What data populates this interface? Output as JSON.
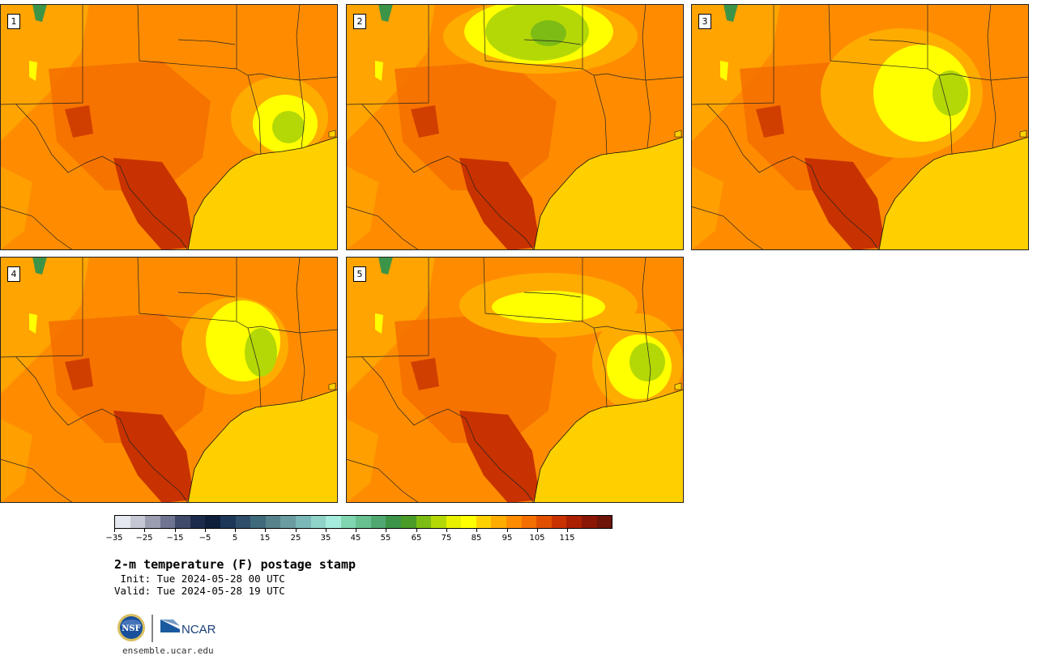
{
  "panels": [
    {
      "label": "1",
      "variant": "east-cool"
    },
    {
      "label": "2",
      "variant": "north-cool"
    },
    {
      "label": "3",
      "variant": "center-cool"
    },
    {
      "label": "4",
      "variant": "oklahoma-cool"
    },
    {
      "label": "5",
      "variant": "arkansas-cool"
    }
  ],
  "colorbar": {
    "colors": [
      "#e5e8ee",
      "#c5c8d4",
      "#9a9eb0",
      "#6f7590",
      "#3f4a6a",
      "#1c2a4c",
      "#0e1f3c",
      "#1d3758",
      "#2e4e6a",
      "#3f6a7c",
      "#56828c",
      "#6a9ca2",
      "#7ab8b8",
      "#8fd2c8",
      "#a6ecdc",
      "#7fd6b0",
      "#66c090",
      "#4fa870",
      "#3c9448",
      "#4a9c28",
      "#7cbc14",
      "#b4d806",
      "#e8f000",
      "#ffff00",
      "#ffd000",
      "#ffac00",
      "#ff8c00",
      "#f46e00",
      "#e05000",
      "#c83200",
      "#aa2000",
      "#8a1606",
      "#6e1408"
    ],
    "tick_labels": [
      "−35",
      "−25",
      "−15",
      "−5",
      "5",
      "15",
      "25",
      "35",
      "45",
      "55",
      "65",
      "75",
      "85",
      "95",
      "105",
      "115"
    ]
  },
  "legend_colors": {
    "gulf": "#ffd000",
    "hot": "#c83200",
    "warm": "#f46e00",
    "base": "#ff8c00",
    "mild": "#ffac00",
    "cool": "#ffff00",
    "cooler": "#b4d806",
    "coolest": "#7cbc14",
    "mountain": "#3c9448"
  },
  "title": "2-m temperature (F) postage stamp",
  "init": " Init: Tue 2024-05-28 00 UTC",
  "valid": "Valid: Tue 2024-05-28 19 UTC",
  "logos": {
    "nsf": "NSF",
    "ncar": "NCAR"
  },
  "site": "ensemble.ucar.edu"
}
